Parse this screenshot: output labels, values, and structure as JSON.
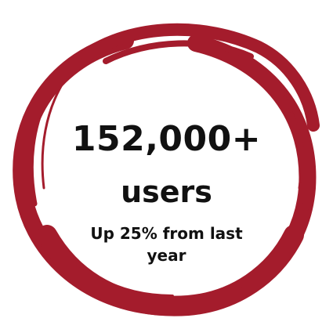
{
  "stat": {
    "number": "152,000+",
    "unit": "users",
    "caption": "Up 25% from last year"
  },
  "style": {
    "ring_color": "#a41c2c",
    "text_color": "#111111",
    "background": "#ffffff"
  }
}
